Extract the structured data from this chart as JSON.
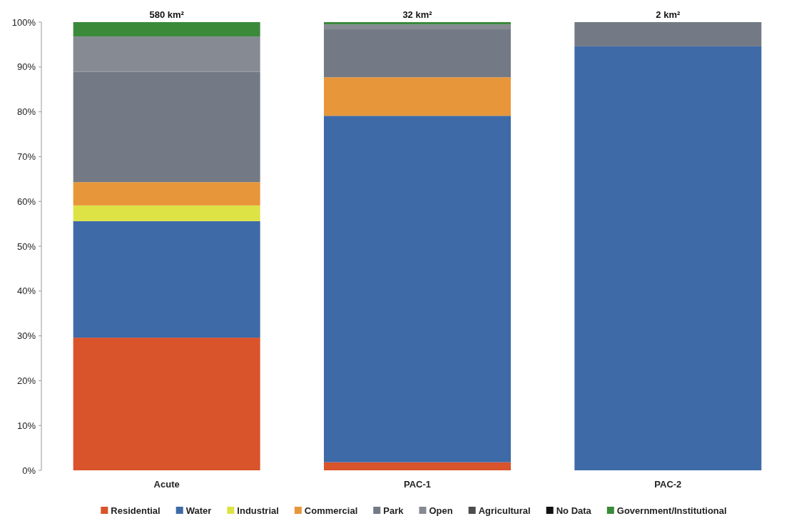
{
  "chart_data": {
    "type": "bar",
    "stacked": true,
    "categories": [
      "Acute",
      "PAC-1",
      "PAC-2"
    ],
    "ylim": [
      0,
      100
    ],
    "yticks": [
      {
        "value": 0,
        "label": "0%"
      },
      {
        "value": 10,
        "label": "10%"
      },
      {
        "value": 20,
        "label": "20%"
      },
      {
        "value": 30,
        "label": "30%"
      },
      {
        "value": 40,
        "label": "40%"
      },
      {
        "value": 50,
        "label": "50%"
      },
      {
        "value": 60,
        "label": "60%"
      },
      {
        "value": 70,
        "label": "70%"
      },
      {
        "value": 80,
        "label": "80%"
      },
      {
        "value": 90,
        "label": "90%"
      },
      {
        "value": 100,
        "label": "100%"
      }
    ],
    "grid": false,
    "legend": "bottom",
    "annotations": [
      {
        "text": "580 km²",
        "x": "Acute",
        "y": 100
      },
      {
        "text": "32 km²",
        "x": "PAC-1",
        "y": 100
      },
      {
        "text": "2 km²",
        "x": "PAC-2",
        "y": 100
      }
    ],
    "series": [
      {
        "name": "Residential",
        "color": "#d9532b",
        "values": [
          29.6,
          1.8,
          0
        ]
      },
      {
        "name": "Water",
        "color": "#3e6aa8",
        "values": [
          26.0,
          77.3,
          94.6
        ]
      },
      {
        "name": "Industrial",
        "color": "#dde344",
        "values": [
          3.5,
          0,
          0
        ]
      },
      {
        "name": "Commercial",
        "color": "#e8963a",
        "values": [
          5.2,
          8.6,
          0
        ]
      },
      {
        "name": "Park",
        "color": "#737a85",
        "values": [
          24.6,
          10.7,
          5.4
        ]
      },
      {
        "name": "Open",
        "color": "#858a93",
        "values": [
          7.9,
          1.1,
          0
        ]
      },
      {
        "name": "Agricultural",
        "color": "#4d4d4d",
        "values": [
          0,
          0,
          0
        ]
      },
      {
        "name": "No Data",
        "color": "#111111",
        "values": [
          0,
          0,
          0
        ]
      },
      {
        "name": "Government/Institutional",
        "color": "#3a8a3a",
        "values": [
          3.2,
          0.5,
          0
        ]
      }
    ]
  }
}
